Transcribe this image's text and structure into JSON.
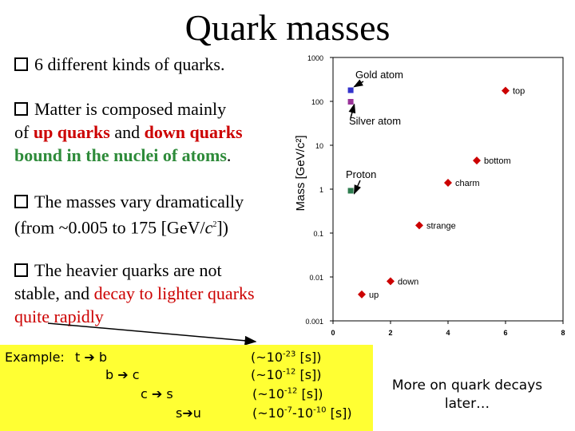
{
  "title": "Quark masses",
  "bullets": {
    "b1": "6 different kinds of quarks.",
    "b2": {
      "line1": "Matter is composed mainly",
      "of": "of",
      "up": "up quarks",
      "and": " and ",
      "down": "down quarks",
      "bound": "bound in the nuclei of  atoms",
      "period": "."
    },
    "b3": {
      "line1": "The masses vary dramatically",
      "line2a": "(from ~0.005 to 175 [GeV/",
      "c": "c",
      "sup": "2",
      "line2b": "])"
    },
    "b4": {
      "line1": "The heavier quarks are not",
      "line2a": "stable, and ",
      "decay": "decay to lighter quarks",
      "line3": "quite rapidly"
    }
  },
  "chart_data": {
    "type": "scatter",
    "ylabel": "Mass [GeV/c²]",
    "yscale": "log",
    "ylim": [
      0.001,
      1000
    ],
    "xlim": [
      0,
      8
    ],
    "y_ticks": [
      "1000",
      "100",
      "10",
      "1",
      "0.1",
      "0.01",
      "0.001"
    ],
    "x_ticks": [
      "0",
      "2",
      "4",
      "6",
      "8"
    ],
    "points": [
      {
        "label": "up",
        "x": 1.0,
        "y": 0.004
      },
      {
        "label": "down",
        "x": 2.0,
        "y": 0.008
      },
      {
        "label": "strange",
        "x": 3.0,
        "y": 0.15
      },
      {
        "label": "charm",
        "x": 4.0,
        "y": 1.4
      },
      {
        "label": "bottom",
        "x": 5.0,
        "y": 4.5
      },
      {
        "label": "top",
        "x": 6.0,
        "y": 175
      }
    ],
    "markers": [
      {
        "label": "Gold atom",
        "x": 0.6,
        "y": 183,
        "color": "#3333cc"
      },
      {
        "label": "Silver atom",
        "x": 0.6,
        "y": 100,
        "color": "#993399"
      },
      {
        "label": "Proton",
        "x": 0.6,
        "y": 0.94,
        "color": "#2e7d4f"
      }
    ],
    "point_color": "#cc0000"
  },
  "example": {
    "label": "Example:",
    "rows": [
      {
        "from": "t",
        "to": "b",
        "lifetime": "(~10",
        "exp": "-23",
        "unit": " [s])"
      },
      {
        "from": "b",
        "to": "c",
        "lifetime": "(~10",
        "exp": "-12",
        "unit": " [s])"
      },
      {
        "from": "c",
        "to": "s",
        "lifetime": "(~10",
        "exp": "-12",
        "unit": " [s])"
      },
      {
        "from": "s",
        "to": "u",
        "lifetime": "(~10",
        "exp": "-7",
        "mid": "-10",
        "exp2": "-10",
        "unit": " [s])"
      }
    ]
  },
  "note": {
    "line1": "More on quark decays",
    "line2": "later…"
  }
}
